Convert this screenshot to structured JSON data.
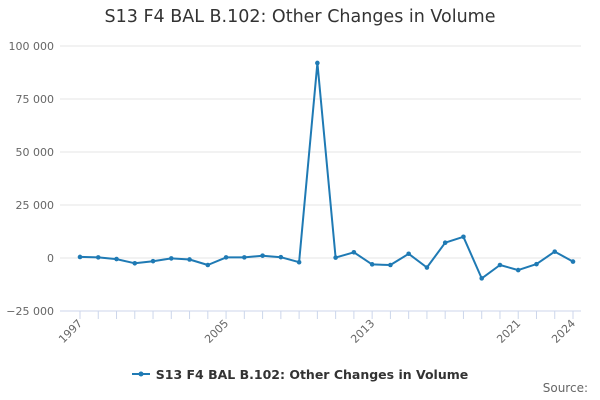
{
  "title": "S13 F4 BAL B.102: Other Changes in Volume",
  "source_label": "Source:",
  "legend": {
    "label": "S13 F4 BAL B.102: Other Changes in Volume"
  },
  "colors": {
    "series": "#1f7ab4",
    "grid": "#e6e6e6",
    "axis": "#ccd6eb",
    "text": "#666666"
  },
  "chart_data": {
    "type": "line",
    "title": "S13 F4 BAL B.102: Other Changes in Volume",
    "xlabel": "",
    "ylabel": "",
    "xlim": [
      1997,
      2024
    ],
    "ylim": [
      -25000,
      100000
    ],
    "x_ticks": [
      1997,
      2005,
      2013,
      2021,
      2024
    ],
    "y_ticks": [
      -25000,
      0,
      25000,
      50000,
      75000,
      100000
    ],
    "y_tick_labels": [
      "−25 000",
      "0",
      "25 000",
      "50 000",
      "75 000",
      "100 000"
    ],
    "grid": "horizontal",
    "legend_position": "bottom-center",
    "series": [
      {
        "name": "S13 F4 BAL B.102: Other Changes in Volume",
        "x": [
          1997,
          1998,
          1999,
          2000,
          2001,
          2002,
          2003,
          2004,
          2005,
          2006,
          2007,
          2008,
          2009,
          2010,
          2011,
          2012,
          2013,
          2014,
          2015,
          2016,
          2017,
          2018,
          2019,
          2020,
          2021,
          2022,
          2023,
          2024
        ],
        "values": [
          500,
          300,
          -500,
          -2500,
          -1500,
          -200,
          -700,
          -3300,
          300,
          300,
          1100,
          400,
          -2000,
          92000,
          200,
          2700,
          -3000,
          -3300,
          2000,
          -4500,
          7200,
          10000,
          -9600,
          -3300,
          -5700,
          -2900,
          3000,
          -1700
        ]
      }
    ]
  }
}
